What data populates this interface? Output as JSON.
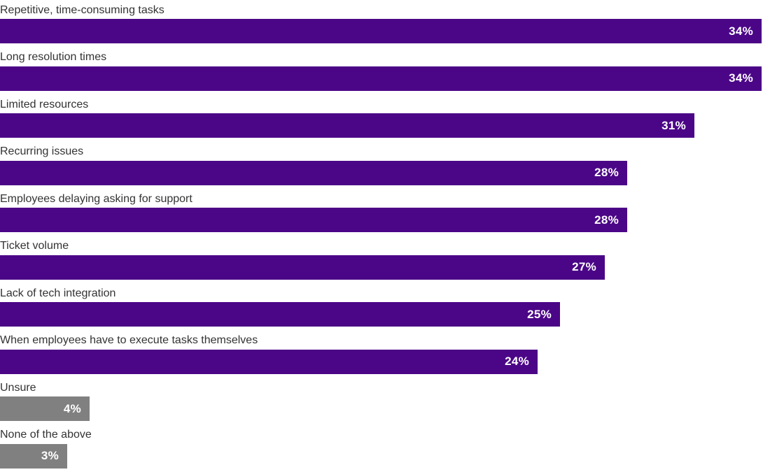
{
  "chart_data": {
    "type": "bar",
    "orientation": "horizontal",
    "title": "",
    "xlabel": "",
    "ylabel": "",
    "value_suffix": "%",
    "xlim": [
      0,
      35
    ],
    "grid": false,
    "legend": false,
    "axes_visible": false,
    "colors": {
      "primary_bar": "#4B0687",
      "muted_bar": "#808080",
      "category_text": "#333333",
      "value_text": "#FFFFFF",
      "background": "#FFFFFF"
    },
    "categories": [
      "Repetitive, time-consuming tasks",
      "Long resolution times",
      "Limited resources",
      "Recurring issues",
      "Employees delaying asking for support",
      "Ticket volume",
      "Lack of tech integration",
      "When employees have to execute tasks themselves",
      "Unsure",
      "None of the above"
    ],
    "values": [
      34,
      34,
      31,
      28,
      28,
      27,
      25,
      24,
      4,
      3
    ],
    "items": [
      {
        "label": "Repetitive, time-consuming tasks",
        "value": 34,
        "display": "34%",
        "color": "#4B0687"
      },
      {
        "label": "Long resolution times",
        "value": 34,
        "display": "34%",
        "color": "#4B0687"
      },
      {
        "label": "Limited resources",
        "value": 31,
        "display": "31%",
        "color": "#4B0687"
      },
      {
        "label": "Recurring issues",
        "value": 28,
        "display": "28%",
        "color": "#4B0687"
      },
      {
        "label": "Employees delaying asking for support",
        "value": 28,
        "display": "28%",
        "color": "#4B0687"
      },
      {
        "label": "Ticket volume",
        "value": 27,
        "display": "27%",
        "color": "#4B0687"
      },
      {
        "label": "Lack of tech integration",
        "value": 25,
        "display": "25%",
        "color": "#4B0687"
      },
      {
        "label": "When employees have to execute tasks themselves",
        "value": 24,
        "display": "24%",
        "color": "#4B0687"
      },
      {
        "label": "Unsure",
        "value": 4,
        "display": "4%",
        "color": "#808080"
      },
      {
        "label": "None of the above",
        "value": 3,
        "display": "3%",
        "color": "#808080"
      }
    ]
  }
}
